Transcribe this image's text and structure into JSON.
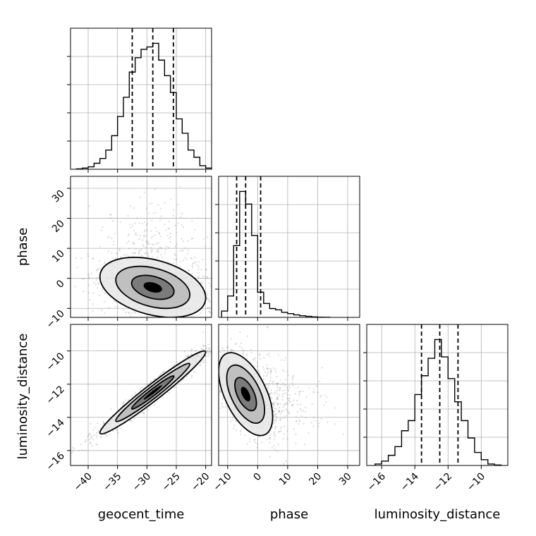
{
  "chart_data": {
    "type": "corner",
    "parameters": [
      "geocent_time",
      "phase",
      "luminosity_distance"
    ],
    "axis_labels": {
      "x": [
        "geocent_time",
        "phase",
        "luminosity_distance"
      ],
      "y": [
        "phase",
        "luminosity_distance"
      ]
    },
    "grid": true,
    "colors": {
      "line": "#000000",
      "grid": "#b0b0b0",
      "scatter": "#7f7f7f"
    },
    "ranges": {
      "geocent_time": [
        -43,
        -19
      ],
      "phase": [
        -13,
        34
      ],
      "luminosity_distance": [
        -16.9,
        -8.4
      ]
    },
    "ticks": {
      "geocent_time": [
        -40,
        -35,
        -30,
        -25,
        -20
      ],
      "phase": [
        -10,
        0,
        10,
        20,
        30
      ],
      "luminosity_distance": [
        -16,
        -14,
        -12,
        -10
      ]
    },
    "tick_labels": {
      "geocent_time": [
        "−40",
        "−35",
        "−30",
        "−25",
        "−20"
      ],
      "phase": [
        "−10",
        "0",
        "10",
        "20",
        "30"
      ],
      "luminosity_distance": [
        "−16",
        "−14",
        "−12",
        "−10"
      ]
    },
    "quantiles": {
      "geocent_time": [
        -32.5,
        -29.0,
        -25.5
      ],
      "phase": [
        -7.0,
        -4.0,
        1.0
      ],
      "luminosity_distance": [
        -13.6,
        -12.5,
        -11.4
      ]
    },
    "histograms": {
      "geocent_time": {
        "edges": [
          -42,
          -41,
          -40,
          -39,
          -38,
          -37,
          -36,
          -35,
          -34,
          -33,
          -32,
          -31,
          -30,
          -29,
          -28,
          -27,
          -26,
          -25,
          -24,
          -23,
          -22,
          -21,
          -20,
          -19
        ],
        "counts": [
          0.3,
          1,
          2,
          5,
          9,
          16,
          28,
          44,
          60,
          81,
          93,
          100,
          102,
          105,
          91,
          78,
          64,
          42,
          30,
          16,
          10,
          3,
          1
        ]
      },
      "phase": {
        "edges": [
          -12,
          -10,
          -8,
          -6,
          -4,
          -2,
          0,
          2,
          4,
          6,
          8,
          10,
          12,
          14,
          16,
          18,
          20,
          22,
          24
        ],
        "counts": [
          5,
          17,
          57,
          100,
          90,
          65,
          20,
          11,
          7,
          6,
          4,
          3,
          2,
          1.3,
          0.8,
          0.4,
          0.2,
          0.1
        ]
      },
      "luminosity_distance": {
        "edges": [
          -16.4,
          -16.0,
          -15.6,
          -15.2,
          -14.8,
          -14.4,
          -14.0,
          -13.6,
          -13.2,
          -12.8,
          -12.4,
          -12.0,
          -11.6,
          -11.2,
          -10.8,
          -10.4,
          -10.0,
          -9.6,
          -9.2,
          -8.8
        ],
        "counts": [
          1,
          3,
          7,
          13,
          24,
          31,
          49,
          62,
          74,
          87,
          75,
          60,
          44,
          31,
          19,
          9,
          4,
          1,
          0.3
        ]
      }
    },
    "joint": {
      "phase_vs_geocent_time": {
        "mean": [
          -29.0,
          -3.0
        ],
        "sd": [
          4.5,
          5.0
        ],
        "corr": -0.35
      },
      "luminosity_distance_vs_geocent_time": {
        "mean": [
          -29.0,
          -12.5
        ],
        "sd": [
          4.5,
          1.25
        ],
        "corr": 0.97
      },
      "luminosity_distance_vs_phase": {
        "mean": [
          -4.0,
          -12.6
        ],
        "sd": [
          4.5,
          1.25
        ],
        "corr": -0.55
      }
    }
  }
}
